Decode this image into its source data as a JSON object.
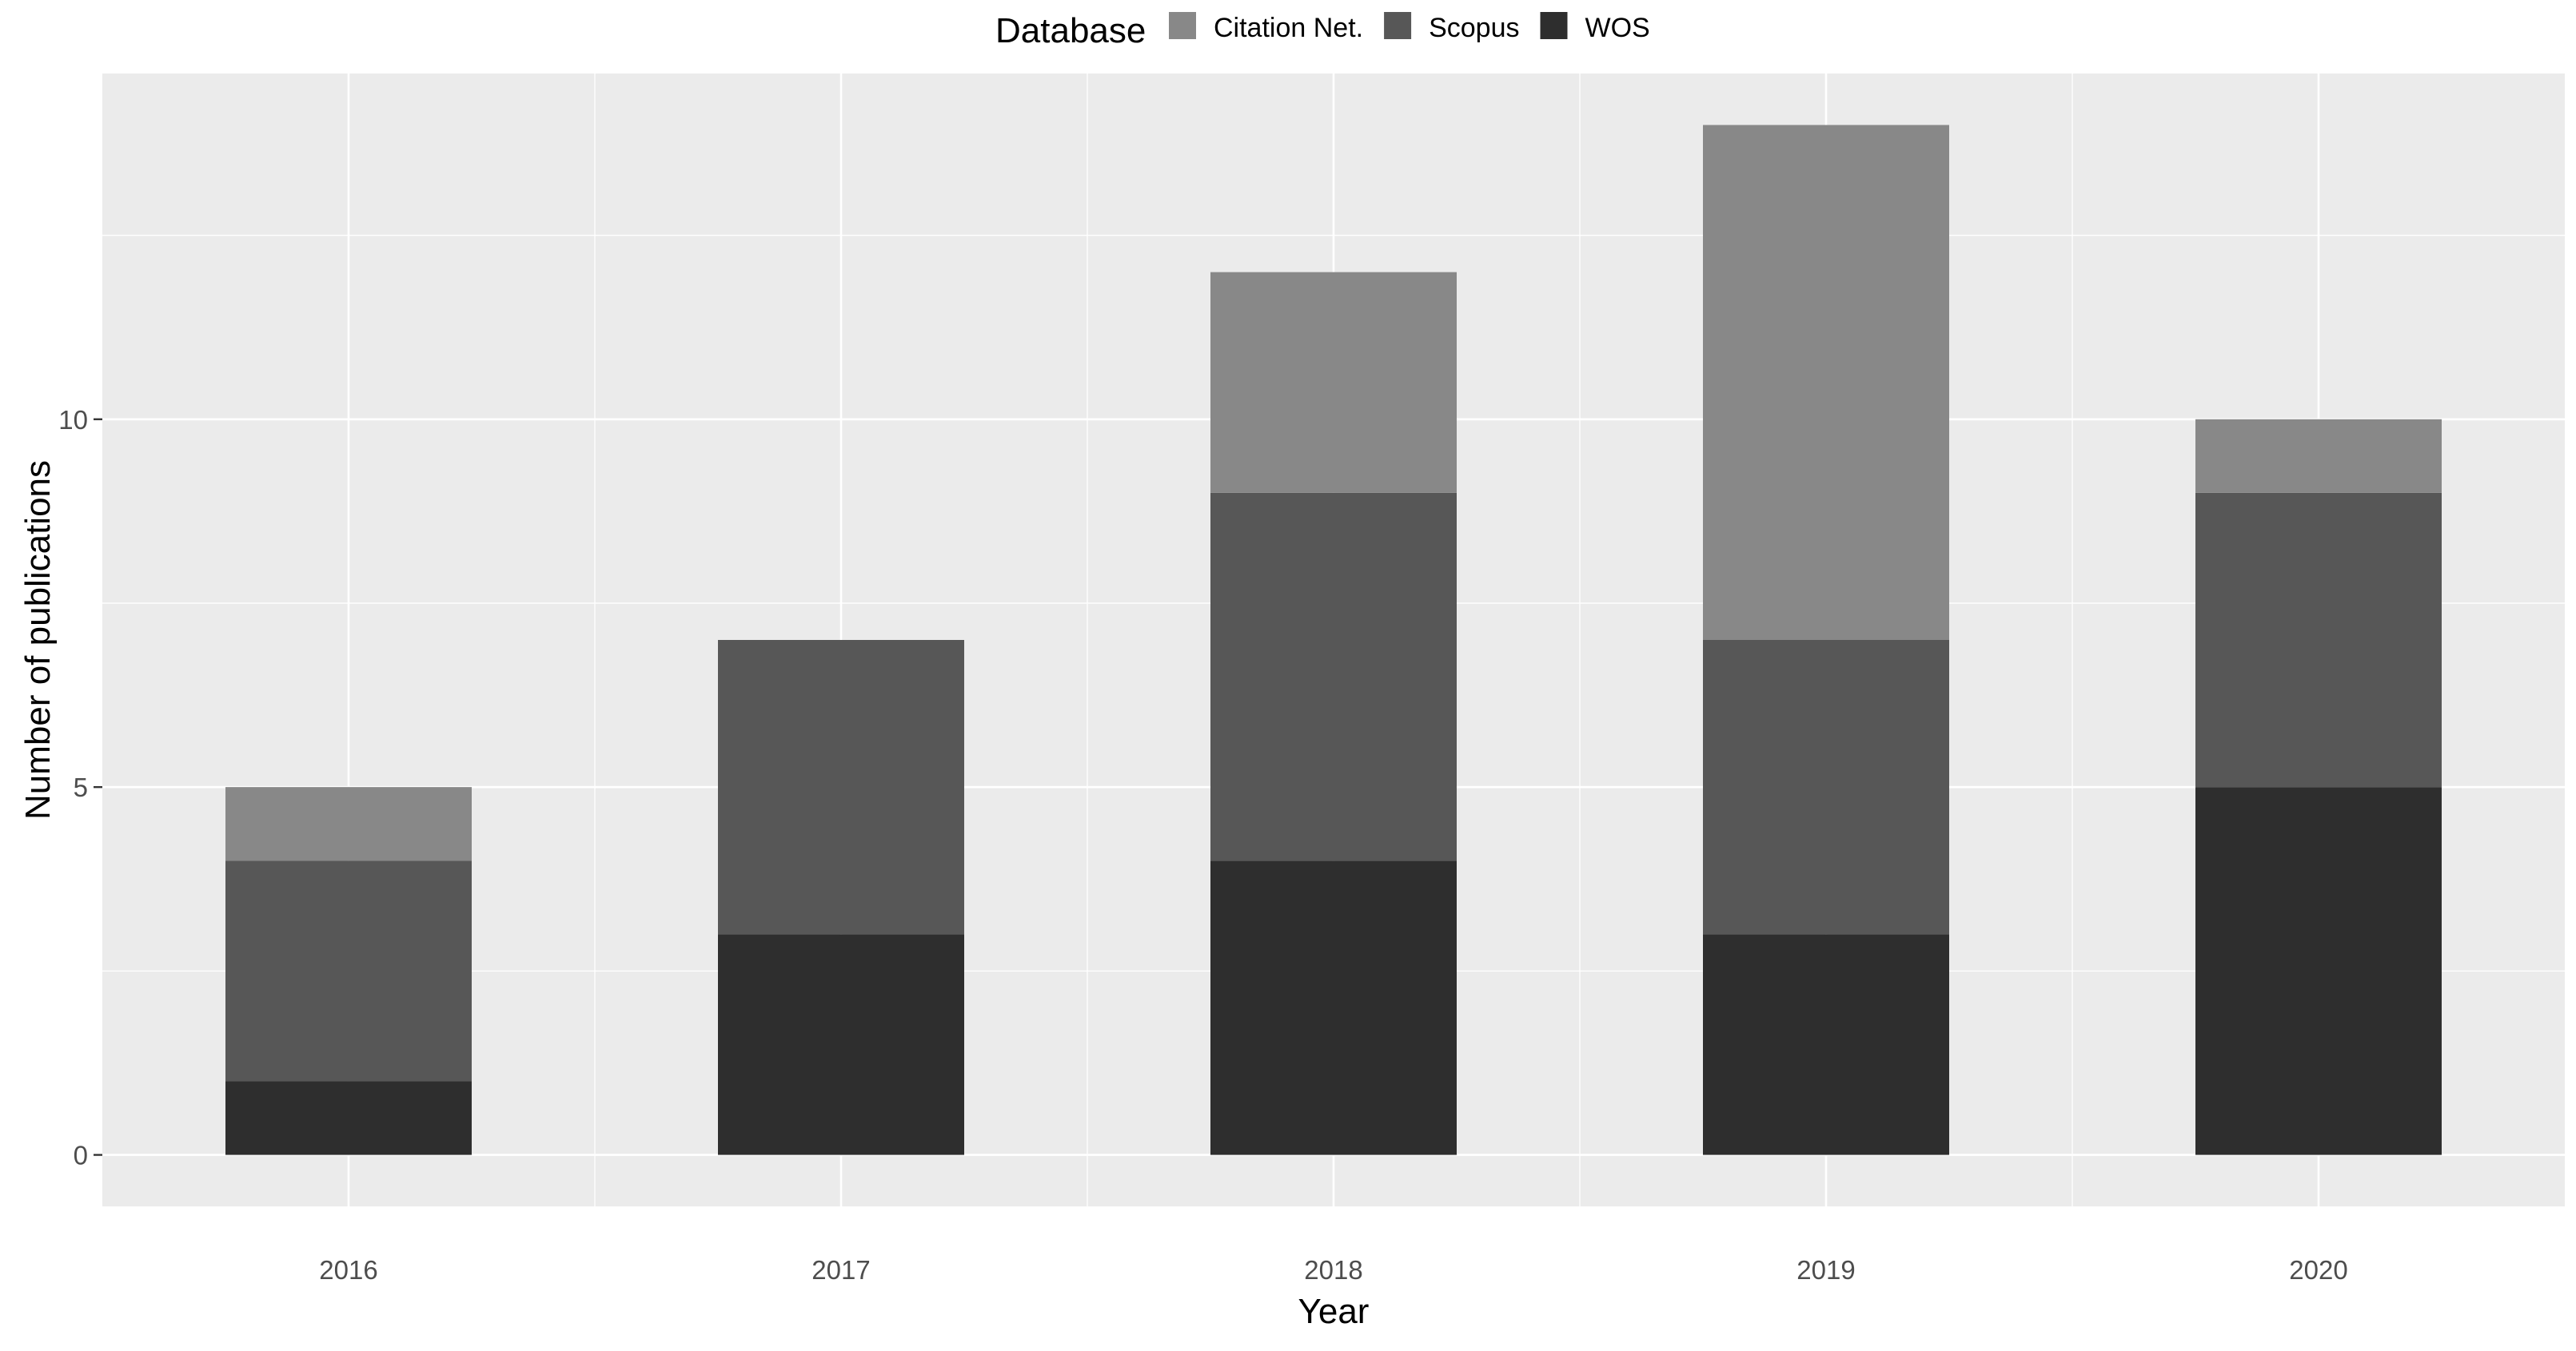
{
  "chart_data": {
    "type": "bar",
    "stacked": true,
    "categories": [
      "2016",
      "2017",
      "2018",
      "2019",
      "2020"
    ],
    "series": [
      {
        "name": "WOS",
        "color": "#2e2e2e",
        "values": [
          1,
          3,
          4,
          3,
          5
        ]
      },
      {
        "name": "Scopus",
        "color": "#575757",
        "values": [
          3,
          4,
          5,
          4,
          4
        ]
      },
      {
        "name": "Citation Net.",
        "color": "#888888",
        "values": [
          1,
          0,
          3,
          7,
          1
        ]
      }
    ],
    "legend": {
      "title": "Database",
      "placement": "top",
      "order": [
        "Citation Net.",
        "Scopus",
        "WOS"
      ]
    },
    "xlabel": "Year",
    "ylabel": "Number of publications",
    "ylim": [
      -0.7,
      14.7
    ],
    "yticks": [
      0,
      5,
      10
    ],
    "grid": true,
    "panel_background": "#ebebeb",
    "grid_color": "#ffffff"
  }
}
